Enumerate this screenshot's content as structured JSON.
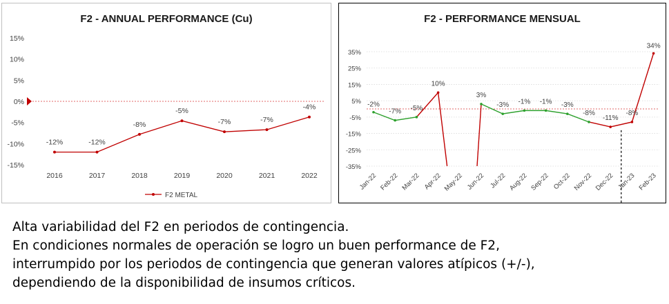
{
  "chart_data": [
    {
      "type": "line",
      "title": "F2 - ANNUAL PERFORMANCE (Cu)",
      "categories": [
        "2016",
        "2017",
        "2018",
        "2019",
        "2020",
        "2021",
        "2022"
      ],
      "series": [
        {
          "name": "F2 METAL",
          "values": [
            -12,
            -12,
            -7.8,
            -4.6,
            -7.2,
            -6.7,
            -3.7
          ],
          "labels": [
            "-12%",
            "-12%",
            "-8%",
            "-5%",
            "-7%",
            "-7%",
            "-4%"
          ],
          "color": "#c00000"
        }
      ],
      "y_ticks": [
        "15%",
        "10%",
        "5%",
        "0%",
        "-5%",
        "-10%",
        "-15%"
      ],
      "ylim": [
        -15,
        15
      ],
      "reference_line": 0,
      "grid": false,
      "legend": "bottom"
    },
    {
      "type": "line",
      "title": "F2 - PERFORMANCE MENSUAL",
      "categories": [
        "Jan-22",
        "Feb-22",
        "Mar-22",
        "Apr-22",
        "May-22",
        "Jun-22",
        "Jul-22",
        "Aug-22",
        "Sep-22",
        "Oct-22",
        "Nov-22",
        "Dec-22",
        "Jan-23",
        "Feb-23"
      ],
      "values": [
        -2,
        -7,
        -5,
        10,
        null,
        3,
        -3,
        -1,
        -1,
        -3,
        -8,
        -11,
        -8,
        34
      ],
      "labels": [
        "-2%",
        "-7%",
        "-5%",
        "10%",
        "",
        "3%",
        "-3%",
        "-1%",
        "-1%",
        "-3%",
        "-8%",
        "-11%",
        "-8%",
        "34%"
      ],
      "colors": {
        "normal": "#2ca02c",
        "contingency": "#c00000"
      },
      "y_ticks": [
        "35%",
        "25%",
        "15%",
        "5%",
        "-5%",
        "-15%",
        "-25%",
        "-35%"
      ],
      "ylim": [
        -35,
        35
      ],
      "reference_line": 0,
      "grid": true,
      "divider_between": [
        "Dec-22",
        "Jan-23"
      ]
    }
  ],
  "caption": {
    "lines": [
      "Alta variabilidad del F2 en periodos de contingencia.",
      "En condiciones normales de operación se logro un buen performance de F2,",
      "interrumpido por los periodos de contingencia que generan valores atípicos (+/-),",
      "dependiendo de la disponibilidad de insumos críticos."
    ]
  }
}
